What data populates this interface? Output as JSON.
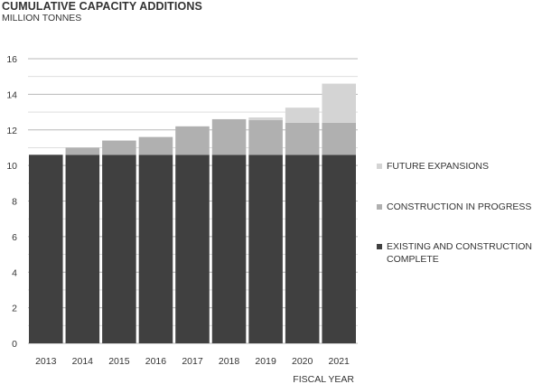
{
  "chart_data": {
    "type": "bar",
    "stacked": true,
    "title": "CUMULATIVE CAPACITY ADDITIONS",
    "subtitle": "MILLION TONNES",
    "xlabel": "FISCAL YEAR",
    "ylabel": "",
    "ylim": [
      0,
      16
    ],
    "yticks": [
      "0",
      "2",
      "4",
      "6",
      "8",
      "10",
      "12",
      "14",
      "16"
    ],
    "grid": true,
    "legend_position": "right",
    "categories": [
      "2013",
      "2014",
      "2015",
      "2016",
      "2017",
      "2018",
      "2019",
      "2020",
      "2021"
    ],
    "series": [
      {
        "name": "EXISTING AND CONSTRUCTION COMPLETE",
        "color": "#404040",
        "values": [
          10.6,
          10.6,
          10.6,
          10.6,
          10.6,
          10.6,
          10.6,
          10.6,
          10.6
        ]
      },
      {
        "name": "CONSTRUCTION IN PROGRESS",
        "color": "#b0b0b0",
        "values": [
          0,
          0.4,
          0.8,
          1.0,
          1.6,
          2.0,
          1.95,
          1.8,
          1.8
        ]
      },
      {
        "name": "FUTURE EXPANSIONS",
        "color": "#d4d4d4",
        "values": [
          0,
          0,
          0,
          0,
          0,
          0,
          0.15,
          0.85,
          2.2
        ]
      }
    ]
  }
}
